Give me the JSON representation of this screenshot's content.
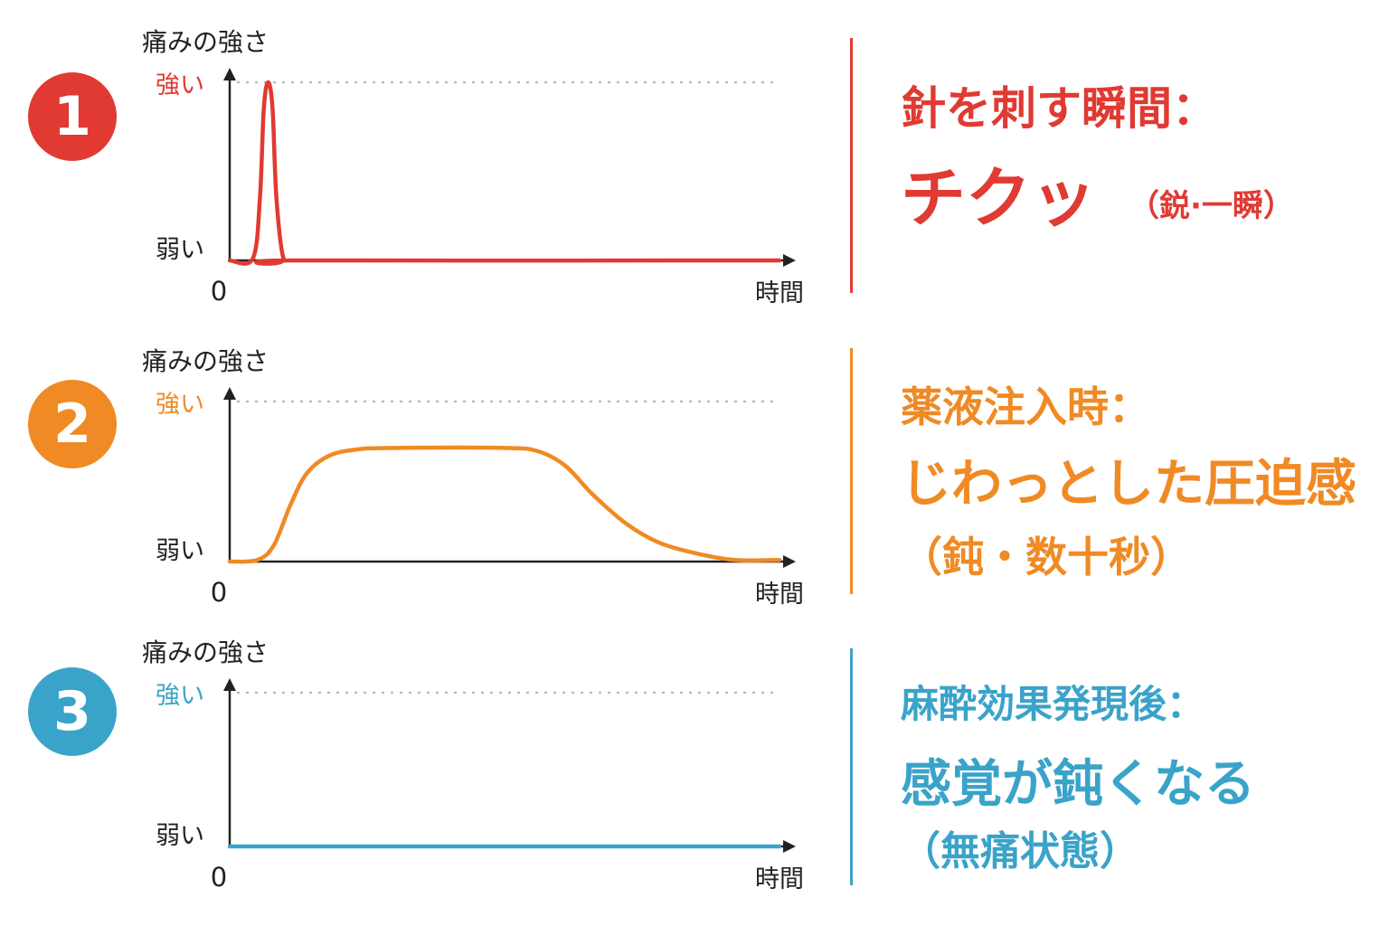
{
  "panels": [
    {
      "number": "1",
      "color": "#e03a33",
      "heading": "針を刺す瞬間：",
      "main": "チクッ",
      "sub": "（鋭·一瞬）",
      "chart_data": {
        "type": "line",
        "ylabel": "痛みの強さ",
        "xlabel": "時間",
        "x_origin_label": "0",
        "y_tick_labels": [
          "弱い",
          "強い"
        ],
        "xlim": [
          0,
          10
        ],
        "ylim": [
          0,
          1
        ],
        "series": [
          {
            "x": [
              0,
              0.42,
              0.55,
              0.62,
              0.7,
              0.78,
              0.85,
              0.98,
              1.2,
              10
            ],
            "values": [
              0,
              0.01,
              0.35,
              0.85,
              1.0,
              0.85,
              0.35,
              0.01,
              0,
              0
            ]
          }
        ]
      }
    },
    {
      "number": "2",
      "color": "#f08a24",
      "heading": "薬液注入時：",
      "main": "じわっとした圧迫感",
      "sub": "（鈍・数十秒）",
      "chart_data": {
        "type": "line",
        "ylabel": "痛みの強さ",
        "xlabel": "時間",
        "x_origin_label": "0",
        "y_tick_labels": [
          "弱い",
          "強い"
        ],
        "xlim": [
          0,
          10
        ],
        "ylim": [
          0,
          1
        ],
        "series": [
          {
            "x": [
              0,
              0.5,
              0.8,
              1.1,
              1.4,
              1.8,
              2.3,
              3,
              5,
              5.6,
              6.1,
              6.6,
              7.2,
              7.8,
              8.5,
              9.2,
              10
            ],
            "values": [
              0,
              0.01,
              0.1,
              0.35,
              0.55,
              0.66,
              0.7,
              0.71,
              0.71,
              0.69,
              0.6,
              0.42,
              0.24,
              0.12,
              0.05,
              0.01,
              0.01
            ]
          }
        ]
      }
    },
    {
      "number": "3",
      "color": "#3aa3c9",
      "heading": "麻酔効果発現後：",
      "main": "感覚が鈍くなる",
      "sub": "（無痛状態）",
      "chart_data": {
        "type": "line",
        "ylabel": "痛みの強さ",
        "xlabel": "時間",
        "x_origin_label": "0",
        "y_tick_labels": [
          "弱い",
          "強い"
        ],
        "xlim": [
          0,
          10
        ],
        "ylim": [
          0,
          1
        ],
        "series": [
          {
            "x": [
              0,
              10
            ],
            "values": [
              0,
              0
            ]
          }
        ]
      }
    }
  ]
}
